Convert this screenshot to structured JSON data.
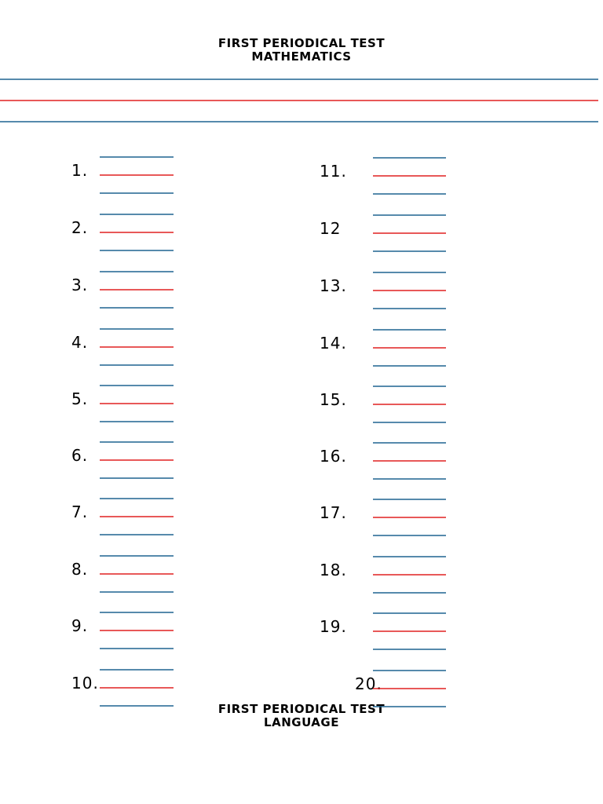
{
  "header": {
    "title": "FIRST PERIODICAL TEST",
    "subject": "MATHEMATICS"
  },
  "items": {
    "left": [
      "1.",
      "2.",
      "3.",
      "4.",
      "5.",
      "6.",
      "7.",
      "8.",
      "9.",
      "10."
    ],
    "right": [
      "11.",
      "12",
      "13.",
      "14.",
      "15.",
      "16.",
      "17.",
      "18.",
      "19.",
      "20."
    ]
  },
  "footer": {
    "title": "FIRST PERIODICAL TEST",
    "subject": "LANGUAGE"
  }
}
